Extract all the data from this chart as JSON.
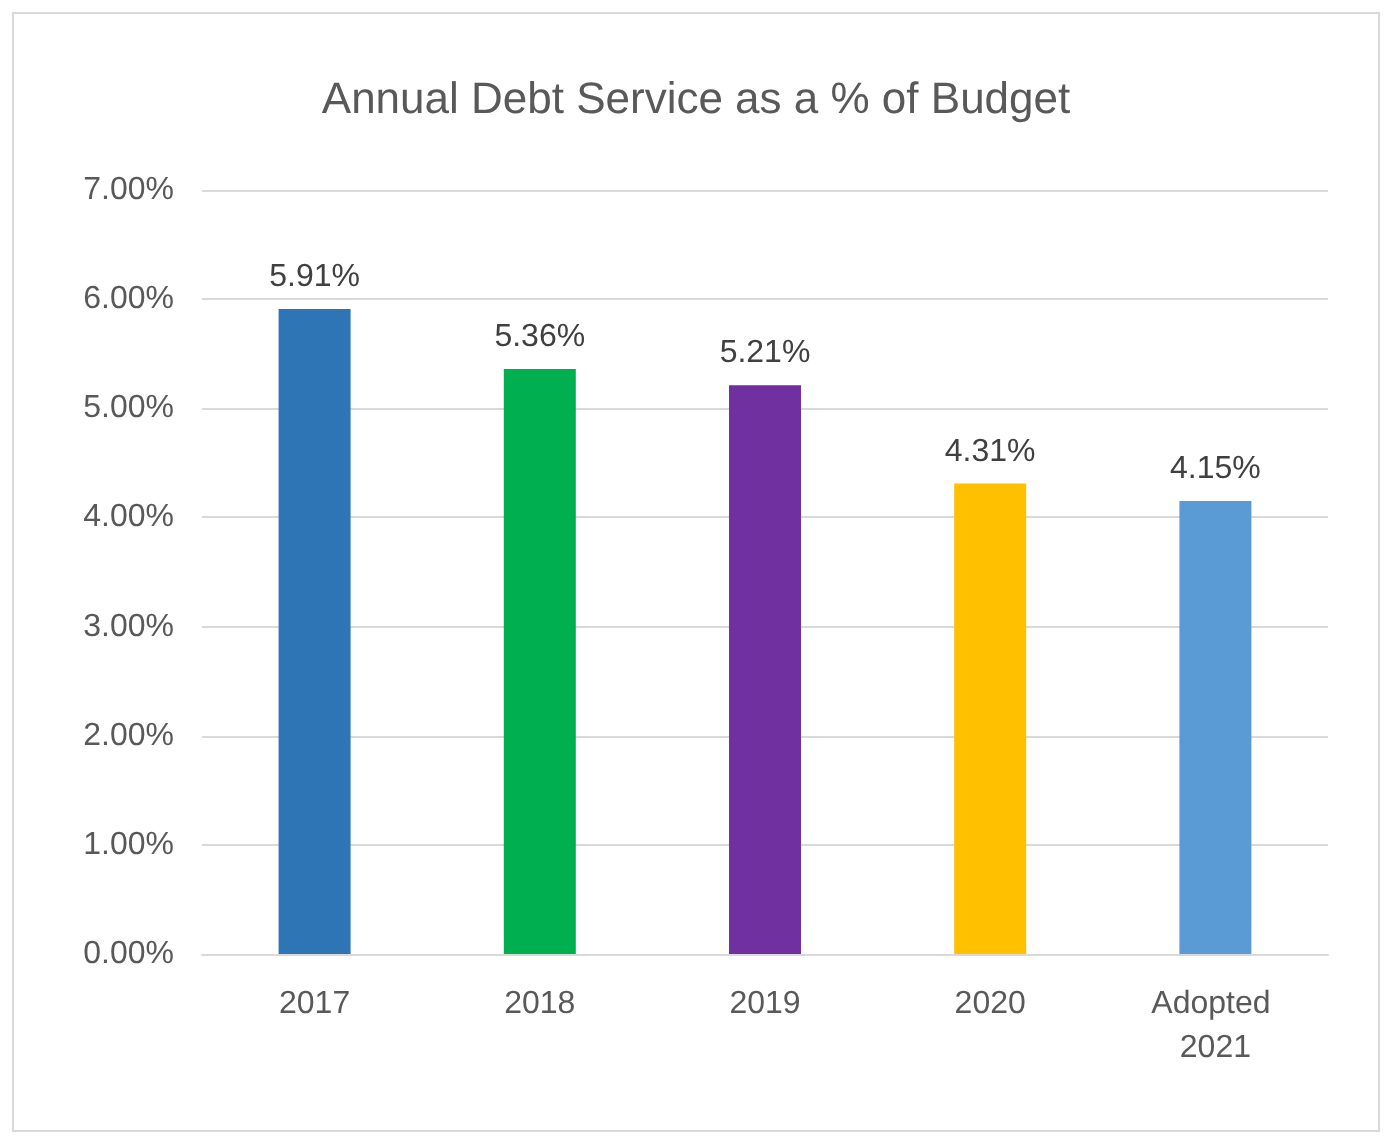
{
  "chart_data": {
    "type": "bar",
    "title": "Annual Debt Service as a % of Budget",
    "categories": [
      "2017",
      "2018",
      "2019",
      "2020",
      "Adopted 2021"
    ],
    "values": [
      5.91,
      5.36,
      5.21,
      4.31,
      4.15
    ],
    "colors": [
      "#2e75b6",
      "#00b050",
      "#7030a0",
      "#ffc000",
      "#5b9bd5"
    ],
    "value_labels": [
      "5.91%",
      "5.36%",
      "5.21%",
      "4.31%",
      "4.15%"
    ],
    "ylim": [
      0,
      7
    ],
    "yticks": [
      {
        "value": 0,
        "label": "0.00%"
      },
      {
        "value": 1,
        "label": "1.00%"
      },
      {
        "value": 2,
        "label": "2.00%"
      },
      {
        "value": 3,
        "label": "3.00%"
      },
      {
        "value": 4,
        "label": "4.00%"
      },
      {
        "value": 5,
        "label": "5.00%"
      },
      {
        "value": 6,
        "label": "6.00%"
      },
      {
        "value": 7,
        "label": "7.00%"
      }
    ],
    "grid": "y"
  }
}
